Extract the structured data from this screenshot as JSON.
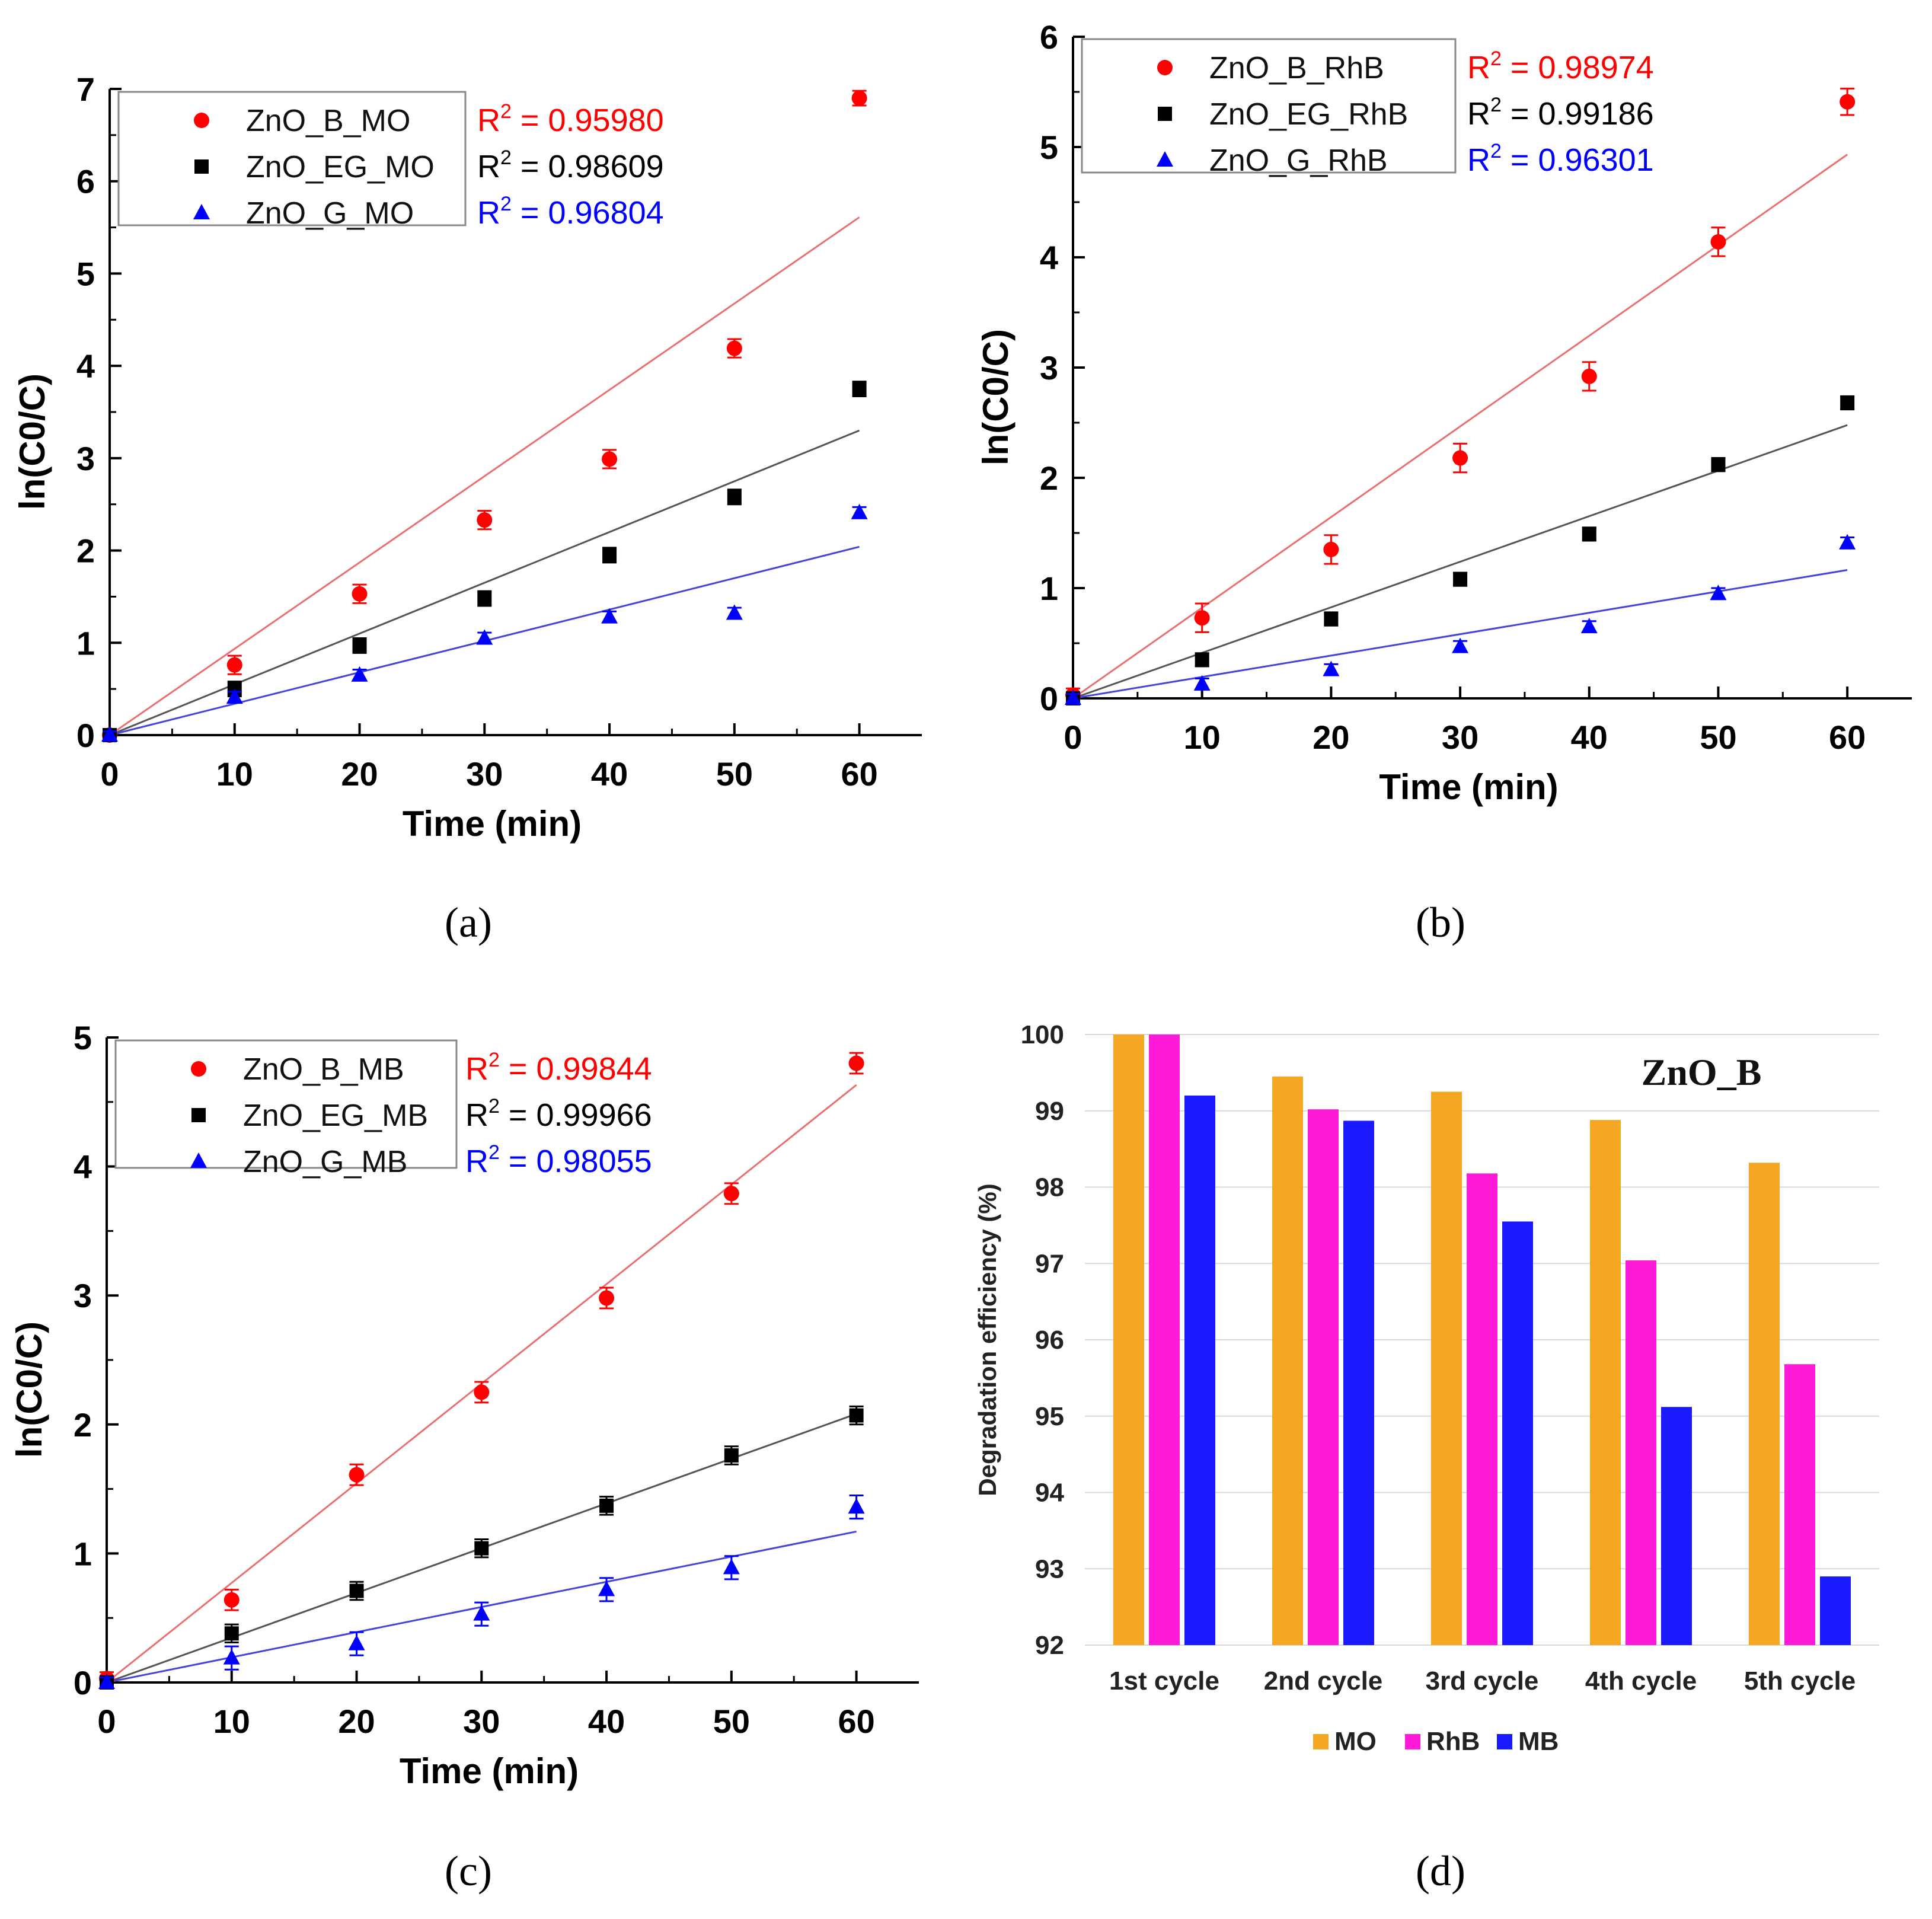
{
  "chart_data": [
    {
      "id": "a",
      "type": "scatter",
      "panel_label": "(a)",
      "xlabel": "Time (min)",
      "ylabel": "ln(C0/C)",
      "xlim": [
        0,
        65
      ],
      "ylim": [
        0,
        7
      ],
      "xticks": [
        0,
        10,
        20,
        30,
        40,
        50,
        60
      ],
      "yticks": [
        0,
        1,
        2,
        3,
        4,
        5,
        6,
        7
      ],
      "legend_position": "top-left",
      "x": [
        0,
        10,
        20,
        30,
        40,
        50,
        60
      ],
      "series": [
        {
          "name": "ZnO_B_MO",
          "marker": "circle",
          "color": "#ff0000",
          "line_color": "#e87070",
          "values": [
            0.0,
            0.76,
            1.53,
            2.33,
            2.99,
            4.19,
            6.9
          ],
          "error": [
            0.06,
            0.1,
            0.1,
            0.1,
            0.1,
            0.1,
            0.08
          ],
          "fit_slope": 0.0935,
          "r2_prefix": "R",
          "r2_sup": "2",
          "r2_value": " = 0.95980"
        },
        {
          "name": "ZnO_EG_MO",
          "marker": "square",
          "color": "#000000",
          "line_color": "#555555",
          "values": [
            0.0,
            0.5,
            0.97,
            1.48,
            1.95,
            2.58,
            3.75
          ],
          "error": [
            0.05,
            0.08,
            0.08,
            0.08,
            0.08,
            0.08,
            0.08
          ],
          "fit_slope": 0.055,
          "r2_prefix": "R",
          "r2_sup": "2",
          "r2_value": " = 0.98609"
        },
        {
          "name": "ZnO_G_MO",
          "marker": "triangle",
          "color": "#0000ff",
          "line_color": "#4444dd",
          "values": [
            0.0,
            0.41,
            0.65,
            1.05,
            1.28,
            1.32,
            2.41
          ],
          "error": [
            0.04,
            0.06,
            0.06,
            0.06,
            0.06,
            0.06,
            0.06
          ],
          "fit_slope": 0.034,
          "r2_prefix": "R",
          "r2_sup": "2",
          "r2_value": " = 0.96804"
        }
      ]
    },
    {
      "id": "b",
      "type": "scatter",
      "panel_label": "(b)",
      "xlabel": "Time (min)",
      "ylabel": "ln(C0/C)",
      "xlim": [
        0,
        65
      ],
      "ylim": [
        0,
        6
      ],
      "xticks": [
        0,
        10,
        20,
        30,
        40,
        50,
        60
      ],
      "yticks": [
        0,
        1,
        2,
        3,
        4,
        5,
        6
      ],
      "legend_position": "top-left",
      "x": [
        0,
        10,
        20,
        30,
        40,
        50,
        60
      ],
      "series": [
        {
          "name": "ZnO_B_RhB",
          "marker": "circle",
          "color": "#ff0000",
          "line_color": "#e87070",
          "values": [
            0.03,
            0.73,
            1.35,
            2.18,
            2.92,
            4.14,
            5.41
          ],
          "error": [
            0.06,
            0.13,
            0.13,
            0.13,
            0.13,
            0.13,
            0.12
          ],
          "fit_slope": 0.0822,
          "r2_prefix": "R",
          "r2_sup": "2",
          "r2_value": " = 0.98974"
        },
        {
          "name": "ZnO_EG_RhB",
          "marker": "square",
          "color": "#000000",
          "line_color": "#555555",
          "values": [
            0.0,
            0.35,
            0.72,
            1.08,
            1.49,
            2.12,
            2.68
          ],
          "error": [
            0.04,
            0.06,
            0.06,
            0.06,
            0.06,
            0.06,
            0.06
          ],
          "fit_slope": 0.0413,
          "r2_prefix": "R",
          "r2_sup": "2",
          "r2_value": " = 0.99186"
        },
        {
          "name": "ZnO_G_RhB",
          "marker": "triangle",
          "color": "#0000ff",
          "line_color": "#4444dd",
          "values": [
            0.0,
            0.13,
            0.26,
            0.47,
            0.65,
            0.95,
            1.41
          ],
          "error": [
            0.04,
            0.05,
            0.05,
            0.05,
            0.05,
            0.05,
            0.05
          ],
          "fit_slope": 0.0194,
          "r2_prefix": "R",
          "r2_sup": "2",
          "r2_value": " = 0.96301"
        }
      ]
    },
    {
      "id": "c",
      "type": "scatter",
      "panel_label": "(c)",
      "xlabel": "Time (min)",
      "ylabel": "ln(C0/C)",
      "xlim": [
        0,
        65
      ],
      "ylim": [
        0,
        5
      ],
      "xticks": [
        0,
        10,
        20,
        30,
        40,
        50,
        60
      ],
      "yticks": [
        0,
        1,
        2,
        3,
        4,
        5
      ],
      "legend_position": "top-left",
      "x": [
        0,
        10,
        20,
        30,
        40,
        50,
        60
      ],
      "series": [
        {
          "name": "ZnO_B_MB",
          "marker": "circle",
          "color": "#ff0000",
          "line_color": "#e87070",
          "values": [
            0.03,
            0.64,
            1.61,
            2.25,
            2.98,
            3.79,
            4.8
          ],
          "error": [
            0.05,
            0.08,
            0.08,
            0.08,
            0.08,
            0.08,
            0.08
          ],
          "fit_slope": 0.0772,
          "r2_prefix": "R",
          "r2_sup": "2",
          "r2_value": " = 0.99844"
        },
        {
          "name": "ZnO_EG_MB",
          "marker": "square",
          "color": "#000000",
          "line_color": "#555555",
          "values": [
            0.0,
            0.38,
            0.71,
            1.04,
            1.37,
            1.76,
            2.07
          ],
          "error": [
            0.04,
            0.07,
            0.07,
            0.07,
            0.07,
            0.07,
            0.07
          ],
          "fit_slope": 0.0347,
          "r2_prefix": "R",
          "r2_sup": "2",
          "r2_value": " = 0.99966"
        },
        {
          "name": "ZnO_G_MB",
          "marker": "triangle",
          "color": "#0000ff",
          "line_color": "#4444dd",
          "values": [
            0.0,
            0.19,
            0.3,
            0.53,
            0.72,
            0.89,
            1.36
          ],
          "error": [
            0.04,
            0.09,
            0.09,
            0.09,
            0.09,
            0.09,
            0.09
          ],
          "fit_slope": 0.0195,
          "r2_prefix": "R",
          "r2_sup": "2",
          "r2_value": " = 0.98055"
        }
      ]
    },
    {
      "id": "d",
      "type": "bar",
      "panel_label": "(d)",
      "title": "",
      "annotation": "ZnO_B",
      "xlabel": "",
      "ylabel": "Degradation efficiency (%)",
      "ylim": [
        92,
        100
      ],
      "yticks": [
        92,
        93,
        94,
        95,
        96,
        97,
        98,
        99,
        100
      ],
      "grid": true,
      "legend_position": "bottom",
      "categories": [
        "1st cycle",
        "2nd cycle",
        "3rd cycle",
        "4th cycle",
        "5th cycle"
      ],
      "series": [
        {
          "name": "MO",
          "color": "#f5a623",
          "values": [
            100.0,
            99.45,
            99.25,
            98.88,
            98.32
          ]
        },
        {
          "name": "RhB",
          "color": "#ff19d9",
          "values": [
            100.0,
            99.02,
            98.18,
            97.04,
            95.68
          ]
        },
        {
          "name": "MB",
          "color": "#1a1aff",
          "values": [
            99.2,
            98.87,
            97.55,
            95.12,
            92.9
          ]
        }
      ]
    }
  ]
}
